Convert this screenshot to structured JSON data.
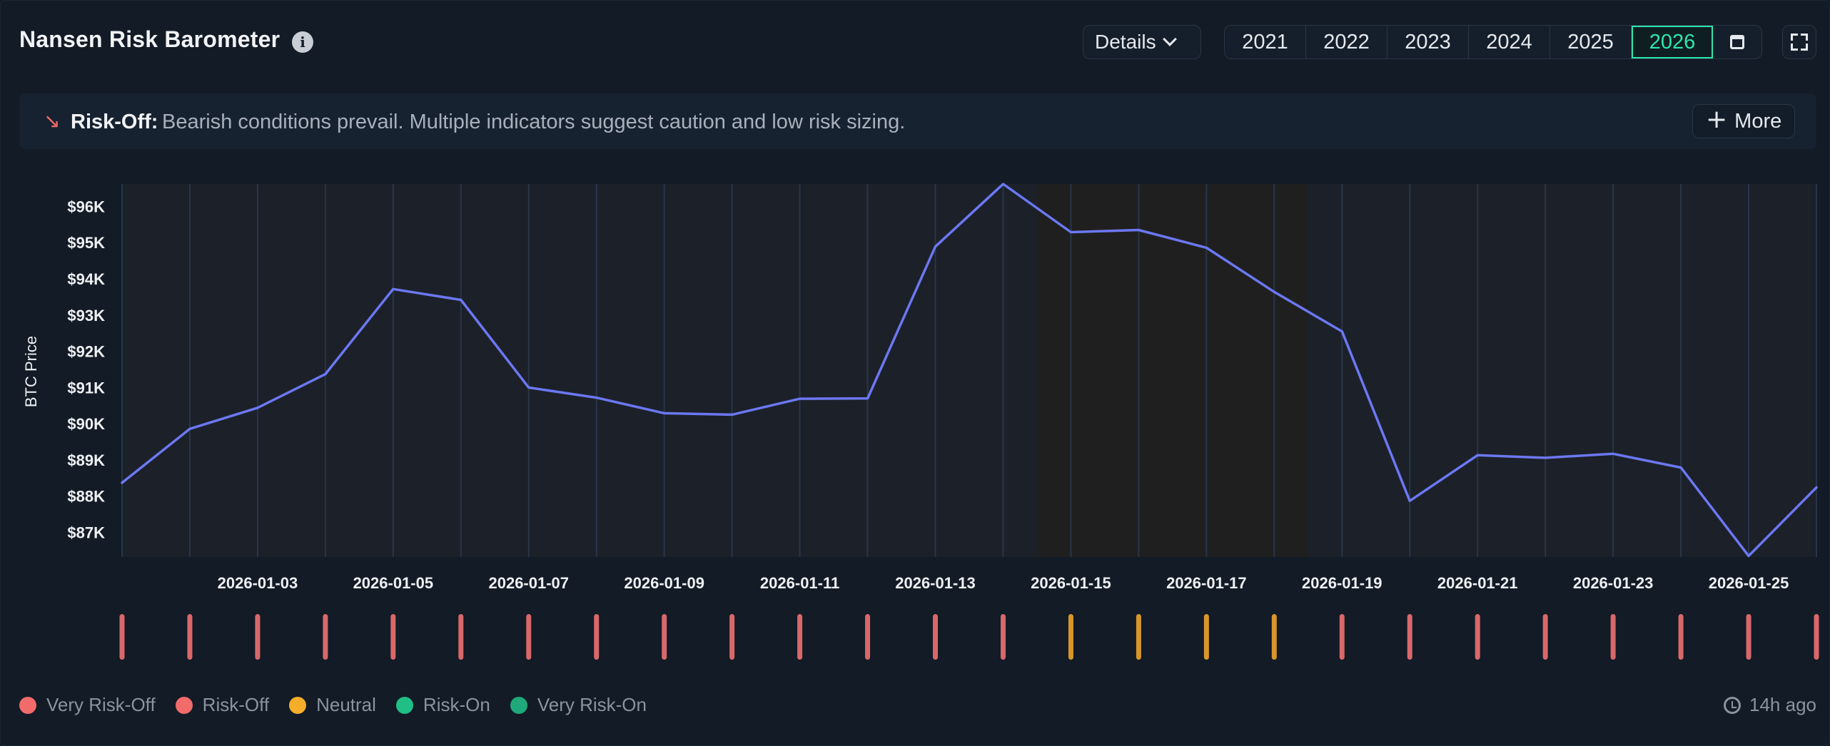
{
  "header": {
    "title": "Nansen Risk Barometer",
    "info_icon": "i",
    "details_label": "Details",
    "years": [
      "2021",
      "2022",
      "2023",
      "2024",
      "2025",
      "2026"
    ],
    "active_year": "2026"
  },
  "banner": {
    "arrow_icon": "↘",
    "status_label": "Risk-Off:",
    "message": "Bearish conditions prevail. Multiple indicators suggest caution and low risk sizing.",
    "more_label": "More",
    "status_color": "#f26b6b"
  },
  "legend": [
    {
      "label": "Very Risk-Off",
      "color": "#f26b6b"
    },
    {
      "label": "Risk-Off",
      "color": "#f26b6b"
    },
    {
      "label": "Neutral",
      "color": "#f5ad2a"
    },
    {
      "label": "Risk-On",
      "color": "#1fbf86"
    },
    {
      "label": "Very Risk-On",
      "color": "#1fa97a"
    }
  ],
  "updated_text": "14h ago",
  "colors": {
    "line": "#6b78f2",
    "risk_off": "#d9686a",
    "neutral": "#d9962a",
    "accent": "#2ee6b0"
  },
  "chart_data": {
    "type": "line",
    "ylabel": "BTC Price",
    "xlabel": "",
    "ylim": [
      86300,
      96600
    ],
    "y_ticks": [
      {
        "value": 87000,
        "label": "$87K"
      },
      {
        "value": 88000,
        "label": "$88K"
      },
      {
        "value": 89000,
        "label": "$89K"
      },
      {
        "value": 90000,
        "label": "$90K"
      },
      {
        "value": 91000,
        "label": "$91K"
      },
      {
        "value": 92000,
        "label": "$92K"
      },
      {
        "value": 93000,
        "label": "$93K"
      },
      {
        "value": 94000,
        "label": "$94K"
      },
      {
        "value": 95000,
        "label": "$95K"
      },
      {
        "value": 96000,
        "label": "$96K"
      }
    ],
    "x": [
      "2026-01-01",
      "2026-01-02",
      "2026-01-03",
      "2026-01-04",
      "2026-01-05",
      "2026-01-06",
      "2026-01-07",
      "2026-01-08",
      "2026-01-09",
      "2026-01-10",
      "2026-01-11",
      "2026-01-12",
      "2026-01-13",
      "2026-01-14",
      "2026-01-15",
      "2026-01-16",
      "2026-01-17",
      "2026-01-18",
      "2026-01-19",
      "2026-01-20",
      "2026-01-21",
      "2026-01-22",
      "2026-01-23",
      "2026-01-24",
      "2026-01-25",
      "2026-01-26"
    ],
    "x_tick_labels": [
      "2026-01-03",
      "2026-01-05",
      "2026-01-07",
      "2026-01-09",
      "2026-01-11",
      "2026-01-13",
      "2026-01-15",
      "2026-01-17",
      "2026-01-19",
      "2026-01-21",
      "2026-01-23",
      "2026-01-25"
    ],
    "series": [
      {
        "values": [
          88350,
          89840,
          90420,
          91350,
          93700,
          93400,
          90980,
          90700,
          90270,
          90230,
          90670,
          90680,
          94870,
          96600,
          95270,
          95330,
          94840,
          93620,
          92530,
          87850,
          89110,
          89040,
          89150,
          88770,
          86330,
          88220
        ]
      }
    ],
    "regimes": [
      "Risk-Off",
      "Risk-Off",
      "Risk-Off",
      "Risk-Off",
      "Risk-Off",
      "Risk-Off",
      "Risk-Off",
      "Risk-Off",
      "Risk-Off",
      "Risk-Off",
      "Risk-Off",
      "Risk-Off",
      "Risk-Off",
      "Risk-Off",
      "Neutral",
      "Neutral",
      "Neutral",
      "Neutral",
      "Risk-Off",
      "Risk-Off",
      "Risk-Off",
      "Risk-Off",
      "Risk-Off",
      "Risk-Off",
      "Risk-Off",
      "Risk-Off"
    ],
    "grid": true,
    "legend_position": "bottom-left"
  }
}
